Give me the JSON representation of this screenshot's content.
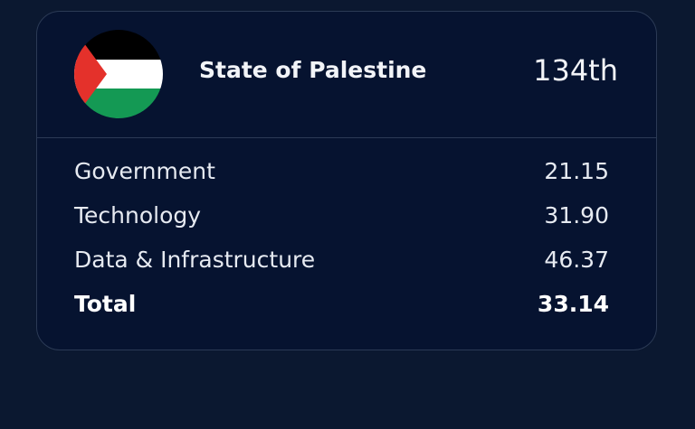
{
  "header": {
    "flag_icon": "palestine-flag-icon",
    "country": "State of Palestine",
    "rank": "134th"
  },
  "scores": [
    {
      "label": "Government",
      "value": "21.15"
    },
    {
      "label": "Technology",
      "value": "31.90"
    },
    {
      "label": "Data & Infrastructure",
      "value": "46.37"
    },
    {
      "label": "Total",
      "value": "33.14"
    }
  ],
  "colors": {
    "background": "#0b1830",
    "card": "#061330",
    "border": "#2b3a55",
    "flag_black": "#000000",
    "flag_white": "#ffffff",
    "flag_green": "#149954",
    "flag_red": "#e4312b"
  }
}
